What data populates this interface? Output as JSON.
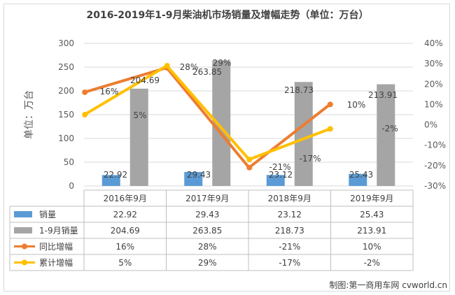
{
  "chart_data": {
    "type": "bar+line",
    "title": "2016-2019年1-9月柴油机市场销量及增幅走势（单位：万台）",
    "ylabel": "单位：万台",
    "categories": [
      "2016年9月",
      "2017年9月",
      "2018年9月",
      "2019年9月"
    ],
    "ylim": [
      0,
      300
    ],
    "yticks": [
      0,
      50,
      100,
      150,
      200,
      250,
      300
    ],
    "y2lim": [
      -30,
      40
    ],
    "y2ticks": [
      "-30%",
      "-20%",
      "-10%",
      "0%",
      "10%",
      "20%",
      "30%",
      "40%"
    ],
    "y2tick_values": [
      -30,
      -20,
      -10,
      0,
      10,
      20,
      30,
      40
    ],
    "series": [
      {
        "name": "销量",
        "kind": "bar",
        "axis": "left",
        "color": "#5b9bd5",
        "values": [
          22.92,
          29.43,
          23.12,
          25.43
        ],
        "labels": [
          "22.92",
          "29.43",
          "23.12",
          "25.43"
        ]
      },
      {
        "name": "1-9月销量",
        "kind": "bar",
        "axis": "left",
        "color": "#a5a5a5",
        "values": [
          204.69,
          263.85,
          218.73,
          213.91
        ],
        "labels": [
          "204.69",
          "263.85",
          "218.73",
          "213.91"
        ]
      },
      {
        "name": "同比增幅",
        "kind": "line",
        "axis": "right",
        "color": "#ed7d31",
        "values": [
          16,
          28,
          -21,
          10
        ],
        "labels": [
          "16%",
          "28%",
          "-21%",
          "10%"
        ]
      },
      {
        "name": "累计增幅",
        "kind": "line",
        "axis": "right",
        "color": "#ffc000",
        "values": [
          5,
          29,
          -17,
          -2
        ],
        "labels": [
          "5%",
          "29%",
          "-17%",
          "-2%"
        ]
      }
    ]
  },
  "credit": "制图:第一商用车网 cvworld.cn"
}
